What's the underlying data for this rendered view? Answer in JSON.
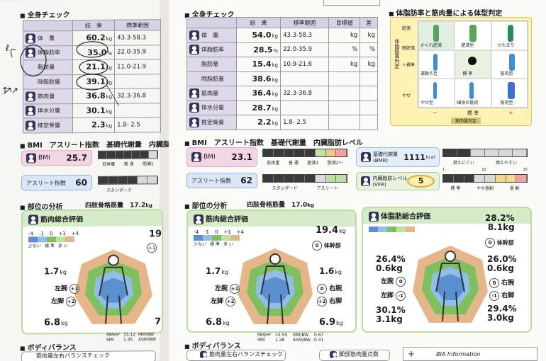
{
  "left": {
    "section_title": "全身チェック",
    "header": [
      "結　果",
      "標準範囲"
    ],
    "rows": [
      {
        "label": "体　重",
        "value": "60.2",
        "unit": "kg",
        "range": "43.3-58.3"
      },
      {
        "label": "体脂肪率",
        "value": "35.0",
        "unit": "%",
        "range": "22.0-35.9"
      },
      {
        "label": "脂肪量",
        "value": "21.1",
        "unit": "kg",
        "range": "11.0-21.9"
      },
      {
        "label": "除脂肪量",
        "value": "39.1",
        "unit": "kg",
        "range": ""
      },
      {
        "label": "筋肉量",
        "value": "36.8",
        "unit": "kg",
        "range": "32.3-36.8"
      },
      {
        "label": "体水分量",
        "value": "30.1",
        "unit": "kg",
        "range": ""
      },
      {
        "label": "推定骨量",
        "value": "2.3",
        "unit": "kg",
        "range": "1.8- 2.5"
      }
    ],
    "bmi_section": "BMI　アスリート指数　基礎代謝量　内臓脂肪",
    "bmi_label": "BMI",
    "bmi_value": "25.7",
    "bmi_scale": [
      "低体重",
      "普 通",
      "肥満1"
    ],
    "athlete_label": "アスリート指数",
    "athlete_value": "60",
    "athlete_scale": [
      "スタンダード"
    ],
    "part_section": "部位の分析",
    "limb_label": "四肢骨格筋量",
    "limb_value": "17.2",
    "limb_unit": "kg",
    "muscle_title": "筋肉総合評価",
    "legend_nums": [
      "-4",
      "-1",
      "0",
      "+1",
      "+4"
    ],
    "legend_words": [
      "少ない",
      "標 準",
      "多 い"
    ],
    "trunk_value": "19",
    "arm_value": "1.7",
    "leg_value": "6.8",
    "right_value": "7",
    "arm_label": "左腕",
    "leg_label": "左脚",
    "arm_badge": "+1",
    "leg_badge": "+2",
    "trunk_badge": "+1",
    "smi": "MM/H²\nSMI",
    "smi_vals": "15.12\n1.35",
    "asm": "MM/BW\nASM/BW",
    "body_balance": "ボディバランス",
    "balance_check": "筋肉量左右バランスチェック",
    "hand_notes": [
      "ℓ",
      "↗",
      "↗",
      "↑ ↗"
    ]
  },
  "right": {
    "section_title": "全身チェック",
    "header": [
      "結　果",
      "標準範囲",
      "目標値",
      "差"
    ],
    "rows": [
      {
        "label": "体　重",
        "value": "54.0",
        "unit": "kg",
        "range": "43.3-58.3",
        "target": "kg",
        "diff": "kg"
      },
      {
        "label": "体脂肪率",
        "value": "28.5",
        "unit": "%",
        "range": "22.0-35.9",
        "target": "%",
        "diff": "%"
      },
      {
        "label": "脂肪量",
        "value": "15.4",
        "unit": "kg",
        "range": "10.9-21.6",
        "target": "kg",
        "diff": "kg"
      },
      {
        "label": "除脂肪量",
        "value": "38.6",
        "unit": "kg",
        "range": "",
        "target": "",
        "diff": ""
      },
      {
        "label": "筋肉量",
        "value": "36.4",
        "unit": "kg",
        "range": "32.3-36.8",
        "target": "",
        "diff": ""
      },
      {
        "label": "体水分量",
        "value": "28.7",
        "unit": "kg",
        "range": "",
        "target": "",
        "diff": ""
      },
      {
        "label": "推定骨量",
        "value": "2.2",
        "unit": "kg",
        "range": "1.8- 2.5",
        "target": "",
        "diff": ""
      }
    ],
    "type_title": "体脂肪率と筋肉量による体型判定",
    "type_rows": [
      "肥満",
      "軽肥満",
      "＋標準",
      "やせ"
    ],
    "type_cells": [
      "かくれ肥満",
      "肥満型",
      "かたまり",
      "運動不足",
      "標 準",
      "筋肉質",
      "やせ型",
      "細身の筋肉",
      "筋肉型"
    ],
    "type_axis_y": "体脂肪率判定",
    "type_axis_x": [
      "－",
      "標 準",
      "＋"
    ],
    "type_axis_xlabel": "筋肉量判定",
    "bmi_section": "BMI　アスリート指数　基礎代謝量　内臓脂肪レベル",
    "bmi_label": "BMI",
    "bmi_value": "23.1",
    "bmi_scale": [
      "低体重",
      "普 通",
      "肥満1",
      "肥満2〜"
    ],
    "athlete_label": "アスリート指数",
    "athlete_value": "62",
    "athlete_scale": [
      "スタンダード",
      "アスリート"
    ],
    "bmr_label": "基礎代謝量\n(BMR)",
    "bmr_value": "1111",
    "bmr_unit": "kcal",
    "bmr_scale": [
      "燃えにくい",
      "燃えやすい"
    ],
    "vfr_label": "内臓脂肪レベル\n(VFR)",
    "vfr_value": "5",
    "vfr_scale": [
      "標 準",
      "やや過剰",
      "過 剰"
    ],
    "vfr_marks": [
      "1",
      "10",
      "15"
    ],
    "part_section": "部位の分析",
    "limb_label": "四肢骨格筋量",
    "limb_value": "17.0",
    "limb_unit": "kg",
    "muscle_title": "筋肉総合評価",
    "legend_nums": [
      "-4",
      "-1",
      "0",
      "+1",
      "+4"
    ],
    "legend_words": [
      "少ない",
      "標 準",
      "多 い"
    ],
    "trunk_value": "19.4",
    "trunk_label": "体幹部",
    "trunk_badge": "0",
    "larm_value": "1.7",
    "rarm_value": "1.6",
    "lleg_value": "6.8",
    "rleg_value": "6.9",
    "larm_label": "左腕",
    "rarm_label": "右腕",
    "lleg_label": "左脚",
    "rleg_label": "右脚",
    "larm_badge": "+1",
    "rarm_badge": "0",
    "lleg_badge": "+2",
    "rleg_badge": "+2",
    "smi_labels": "MM/H²\nSMI",
    "smi_vals": "15.55\n1.26",
    "asm_labels": "MM/BW\nASM/BW",
    "asm_vals": "0.67\n0.31",
    "fat_title": "体脂肪総合評価",
    "fat_trunk_pct": "28.2%",
    "fat_trunk_kg": "8.1kg",
    "fat_trunk_label": "体幹部",
    "fat_trunk_badge": "0",
    "fat_larm_pct": "26.4%",
    "fat_larm_kg": "0.6kg",
    "fat_larm_label": "左腕",
    "fat_larm_badge": "0",
    "fat_rarm_pct": "26.0%",
    "fat_rarm_kg": "0.6kg",
    "fat_rarm_label": "右腕",
    "fat_rarm_badge": "0",
    "fat_lleg_pct": "30.1%",
    "fat_lleg_kg": "3.1kg",
    "fat_lleg_label": "左脚",
    "fat_lleg_badge": "-1",
    "fat_rleg_pct": "29.4%",
    "fat_rleg_kg": "3.0kg",
    "fat_rleg_label": "右脚",
    "fat_rleg_badge": "-1",
    "body_balance": "ボディバランス",
    "balance_check": "筋肉量左右バランスチェック",
    "leg_score": "脚部筋肉量点数",
    "bia": "BIA Information"
  },
  "colors": {
    "purple": "#37345a",
    "lavender": "#ddd9ea",
    "pink": "#e9a7c4",
    "blue": "#5b8fd0",
    "green": "#7fbf5e",
    "orange": "#e5b68a",
    "yellow": "#fff3b3",
    "teal": "#9fd2d0"
  }
}
